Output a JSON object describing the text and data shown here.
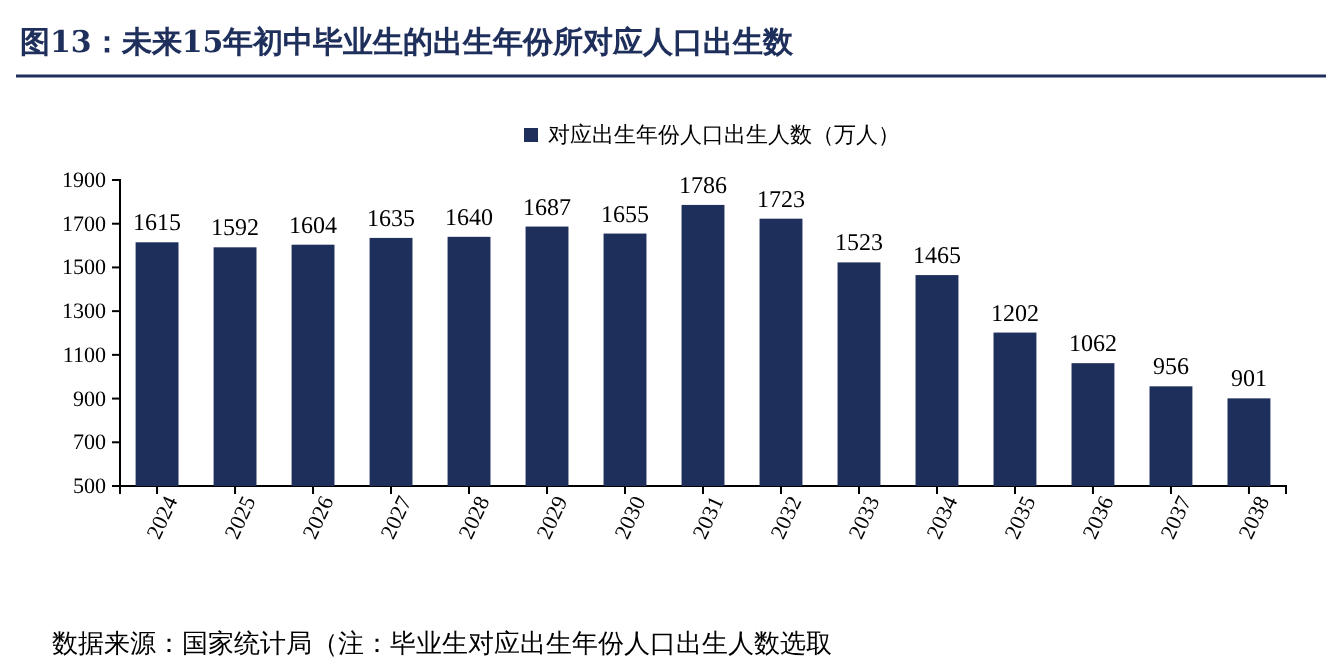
{
  "chart_data": {
    "type": "bar",
    "title": "图13：未来15年初中毕业生的出生年份所对应人口出生数",
    "categories": [
      "2024",
      "2025",
      "2026",
      "2027",
      "2028",
      "2029",
      "2030",
      "2031",
      "2032",
      "2033",
      "2034",
      "2035",
      "2036",
      "2037",
      "2038"
    ],
    "series": [
      {
        "name": "对应出生年份人口出生人数（万人）",
        "color": "#1f2f5c",
        "values": [
          1615,
          1592,
          1604,
          1635,
          1640,
          1687,
          1655,
          1786,
          1723,
          1523,
          1465,
          1202,
          1062,
          956,
          901
        ]
      }
    ],
    "ylim": [
      500,
      1900
    ],
    "yticks": [
      500,
      700,
      900,
      1100,
      1300,
      1500,
      1700,
      1900
    ],
    "data_labels": true,
    "legend": "top",
    "grid": false,
    "annotations": [
      "数据来源：国家统计局（注：毕业生对应出生年份人口出生人数选取"
    ]
  }
}
